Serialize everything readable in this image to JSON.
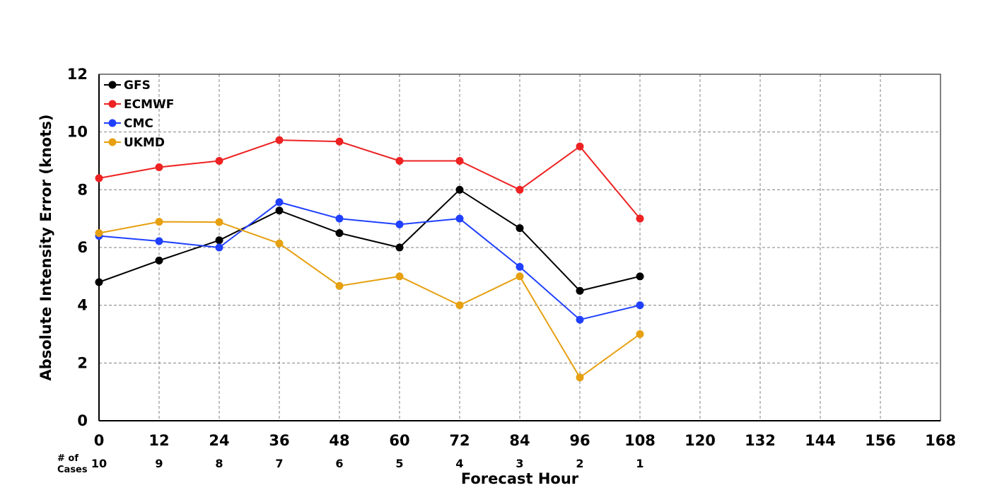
{
  "chart_data": {
    "type": "line",
    "title": "",
    "xlabel": "Forecast Hour",
    "ylabel": "Absolute Intensity Error (knots)",
    "xlim": [
      0,
      168
    ],
    "ylim": [
      0,
      12
    ],
    "xticks": [
      0,
      12,
      24,
      36,
      48,
      60,
      72,
      84,
      96,
      108,
      120,
      132,
      144,
      156,
      168
    ],
    "yticks": [
      0,
      2,
      4,
      6,
      8,
      10,
      12
    ],
    "grid": true,
    "legend_position": "top-left",
    "x": [
      0,
      12,
      24,
      36,
      48,
      60,
      72,
      84,
      96,
      108
    ],
    "series": [
      {
        "name": "GFS",
        "color": "#000000",
        "values": [
          4.8,
          5.55,
          6.25,
          7.28,
          6.5,
          6.0,
          8.0,
          6.67,
          4.5,
          5.0
        ]
      },
      {
        "name": "ECMWF",
        "color": "#ee2222",
        "values": [
          8.4,
          8.78,
          9.0,
          9.72,
          9.67,
          9.0,
          9.0,
          8.0,
          9.5,
          7.0
        ]
      },
      {
        "name": "CMC",
        "color": "#2040ff",
        "values": [
          6.4,
          6.22,
          6.0,
          7.57,
          7.0,
          6.8,
          7.0,
          5.33,
          3.5,
          4.0
        ]
      },
      {
        "name": "UKMD",
        "color": "#e6a010",
        "values": [
          6.5,
          6.89,
          6.88,
          6.14,
          4.67,
          5.0,
          4.0,
          5.0,
          1.5,
          3.0
        ]
      }
    ],
    "cases_label_line1": "# of",
    "cases_label_line2": "Cases",
    "cases": [
      10,
      9,
      8,
      7,
      6,
      5,
      4,
      3,
      2,
      1
    ]
  }
}
